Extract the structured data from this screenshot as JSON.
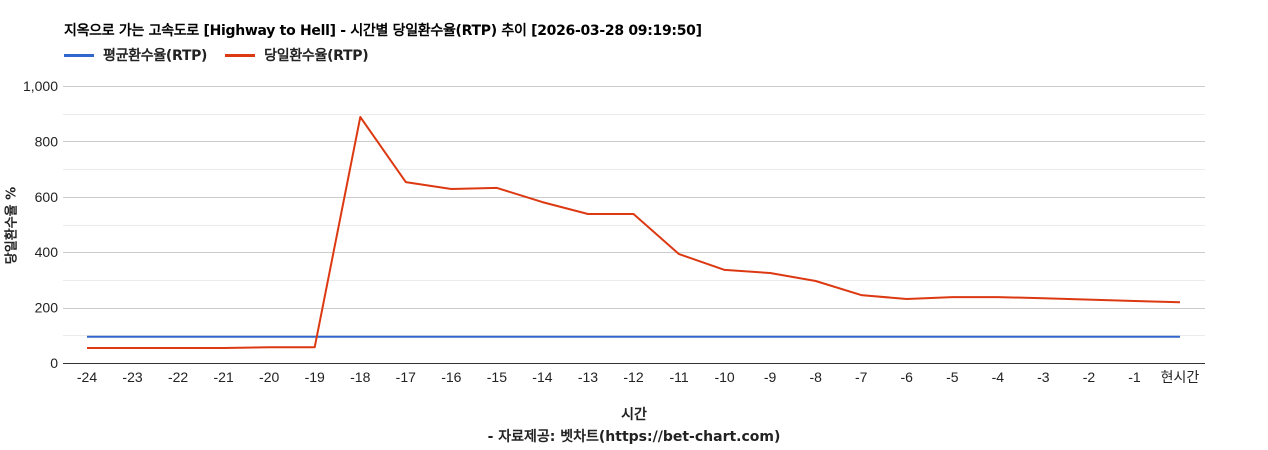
{
  "header": {
    "title": "지옥으로 가는 고속도로 [Highway to Hell] - 시간별 당일환수율(RTP) 추이 [2026-03-28 09:19:50]"
  },
  "legend": [
    {
      "label": "평균환수율(RTP)",
      "color": "#3366cc"
    },
    {
      "label": "당일환수율(RTP)",
      "color": "#dc3912"
    }
  ],
  "axes": {
    "ylabel": "당일환수율 %",
    "xlabel": "시간",
    "source": "- 자료제공: 벳차트(https://bet-chart.com)",
    "yticks": [
      "0",
      "200",
      "400",
      "600",
      "800",
      "1,000"
    ]
  },
  "chart_data": {
    "type": "line",
    "title": "지옥으로 가는 고속도로 [Highway to Hell] - 시간별 당일환수율(RTP) 추이 [2026-03-28 09:19:50]",
    "xlabel": "시간",
    "ylabel": "당일환수율 %",
    "ylim": [
      0,
      1000
    ],
    "yticks": [
      0,
      200,
      400,
      600,
      800,
      1000
    ],
    "grid": true,
    "legend_position": "top",
    "categories": [
      "-24",
      "-23",
      "-22",
      "-21",
      "-20",
      "-19",
      "-18",
      "-17",
      "-16",
      "-15",
      "-14",
      "-13",
      "-12",
      "-11",
      "-10",
      "-9",
      "-8",
      "-7",
      "-6",
      "-5",
      "-4",
      "-3",
      "-2",
      "-1",
      "현시간"
    ],
    "series": [
      {
        "name": "평균환수율(RTP)",
        "color": "#3366cc",
        "values": [
          95,
          95,
          95,
          95,
          95,
          95,
          95,
          95,
          95,
          95,
          95,
          95,
          95,
          95,
          95,
          95,
          95,
          95,
          95,
          95,
          95,
          95,
          95,
          95,
          95
        ]
      },
      {
        "name": "당일환수율(RTP)",
        "color": "#dc3912",
        "values": [
          54,
          54,
          54,
          54,
          57,
          57,
          888,
          653,
          628,
          632,
          581,
          538,
          538,
          393,
          336,
          325,
          296,
          245,
          231,
          238,
          238,
          234,
          229,
          224,
          219
        ]
      }
    ]
  }
}
